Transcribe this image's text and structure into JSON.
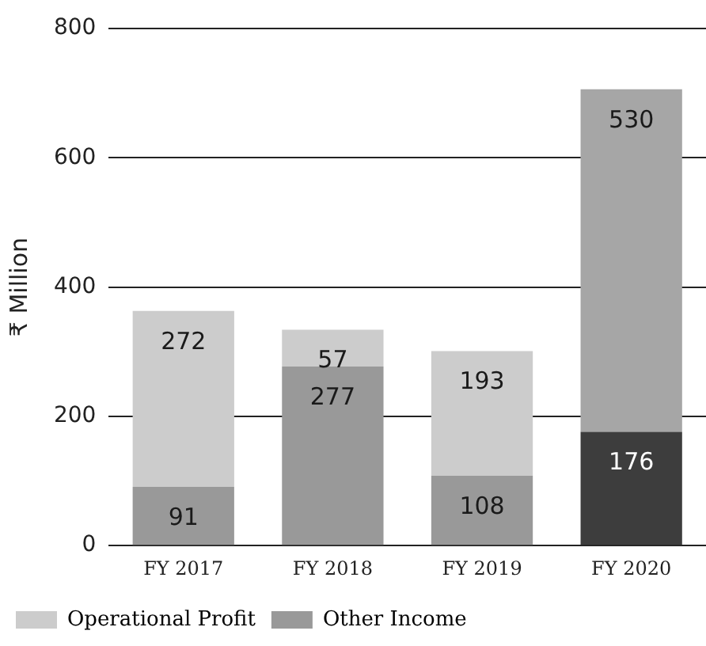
{
  "chart_data": {
    "type": "bar",
    "ylabel": "₹ Million",
    "categories": [
      "FY 2017",
      "FY 2018",
      "FY 2019",
      "FY 2020"
    ],
    "stacked": true,
    "series": [
      {
        "name": "Other Income",
        "color": "#999999",
        "colors": [
          "#999999",
          "#999999",
          "#999999",
          "#3d3d3d"
        ],
        "values": [
          91,
          277,
          108,
          176
        ]
      },
      {
        "name": "Operational Profit",
        "color": "#cccccc",
        "colors": [
          "#cccccc",
          "#cccccc",
          "#cccccc",
          "#a6a6a6"
        ],
        "values": [
          272,
          57,
          193,
          530
        ]
      }
    ],
    "ylim": [
      0,
      800
    ],
    "yticks": [
      0,
      200,
      400,
      600,
      800
    ],
    "grid": "y",
    "legend": "bottom left",
    "data_labels": true
  }
}
